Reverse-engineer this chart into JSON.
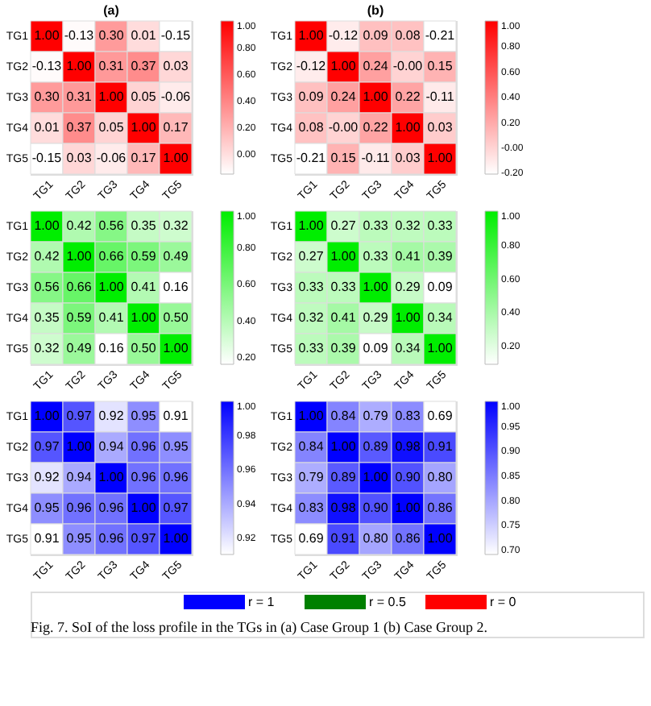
{
  "chart_data": [
    {
      "type": "heatmap",
      "title": "(a)",
      "categories": [
        "TG1",
        "TG2",
        "TG3",
        "TG4",
        "TG5"
      ],
      "y_categories": [
        "TG1",
        "TG2",
        "TG3",
        "TG4",
        "TG5"
      ],
      "cells": [
        [
          1.0,
          -0.13,
          0.3,
          0.01,
          -0.15
        ],
        [
          -0.13,
          1.0,
          0.31,
          0.37,
          0.03
        ],
        [
          0.3,
          0.31,
          1.0,
          0.05,
          -0.06
        ],
        [
          0.01,
          0.37,
          0.05,
          1.0,
          0.17
        ],
        [
          -0.15,
          0.03,
          -0.06,
          0.17,
          1.0
        ]
      ],
      "cell_labels": [
        [
          "1.00",
          "-0.13",
          "0.30",
          "0.01",
          "-0.15"
        ],
        [
          "-0.13",
          "1.00",
          "0.31",
          "0.37",
          "0.03"
        ],
        [
          "0.30",
          "0.31",
          "1.00",
          "0.05",
          "-0.06"
        ],
        [
          "0.01",
          "0.37",
          "0.05",
          "1.00",
          "0.17"
        ],
        [
          "-0.15",
          "0.03",
          "-0.06",
          "0.17",
          "1.00"
        ]
      ],
      "colors": [
        "#ffffff",
        "#ff0000"
      ],
      "clim": [
        -0.15,
        1.0
      ],
      "cticks": [
        {
          "value": 0,
          "label": "0.00"
        },
        {
          "value": 0.2,
          "label": "0.20"
        },
        {
          "value": 0.4,
          "label": "0.40"
        },
        {
          "value": 0.6,
          "label": "0.60"
        },
        {
          "value": 0.8,
          "label": "0.80"
        },
        {
          "value": 1,
          "label": "1.00"
        }
      ]
    },
    {
      "type": "heatmap",
      "title": "(b)",
      "categories": [
        "TG1",
        "TG2",
        "TG3",
        "TG4",
        "TG5"
      ],
      "y_categories": [
        "TG1",
        "TG2",
        "TG3",
        "TG4",
        "TG5"
      ],
      "cells": [
        [
          1.0,
          -0.12,
          0.09,
          0.08,
          -0.21
        ],
        [
          -0.12,
          1.0,
          0.24,
          0.0,
          0.15
        ],
        [
          0.09,
          0.24,
          1.0,
          0.22,
          -0.11
        ],
        [
          0.08,
          0.0,
          0.22,
          1.0,
          0.03
        ],
        [
          -0.21,
          0.15,
          -0.11,
          0.03,
          1.0
        ]
      ],
      "cell_labels": [
        [
          "1.00",
          "-0.12",
          "0.09",
          "0.08",
          "-0.21"
        ],
        [
          "-0.12",
          "1.00",
          "0.24",
          "-0.00",
          "0.15"
        ],
        [
          "0.09",
          "0.24",
          "1.00",
          "0.22",
          "-0.11"
        ],
        [
          "0.08",
          "-0.00",
          "0.22",
          "1.00",
          "0.03"
        ],
        [
          "-0.21",
          "0.15",
          "-0.11",
          "0.03",
          "1.00"
        ]
      ],
      "colors": [
        "#ffffff",
        "#ff0000"
      ],
      "clim": [
        -0.21,
        1.0
      ],
      "cticks": [
        {
          "value": -0.2,
          "label": "-0.20"
        },
        {
          "value": 0,
          "label": "-0.00"
        },
        {
          "value": 0.2,
          "label": "0.20"
        },
        {
          "value": 0.4,
          "label": "0.40"
        },
        {
          "value": 0.6,
          "label": "0.60"
        },
        {
          "value": 0.8,
          "label": "0.80"
        },
        {
          "value": 1,
          "label": "1.00"
        }
      ]
    },
    {
      "type": "heatmap",
      "categories": [
        "TG1",
        "TG2",
        "TG3",
        "TG4",
        "TG5"
      ],
      "y_categories": [
        "TG1",
        "TG2",
        "TG3",
        "TG4",
        "TG5"
      ],
      "cells": [
        [
          1.0,
          0.42,
          0.56,
          0.35,
          0.32
        ],
        [
          0.42,
          1.0,
          0.66,
          0.59,
          0.49
        ],
        [
          0.56,
          0.66,
          1.0,
          0.41,
          0.16
        ],
        [
          0.35,
          0.59,
          0.41,
          1.0,
          0.5
        ],
        [
          0.32,
          0.49,
          0.16,
          0.5,
          1.0
        ]
      ],
      "cell_labels": [
        [
          "1.00",
          "0.42",
          "0.56",
          "0.35",
          "0.32"
        ],
        [
          "0.42",
          "1.00",
          "0.66",
          "0.59",
          "0.49"
        ],
        [
          "0.56",
          "0.66",
          "1.00",
          "0.41",
          "0.16"
        ],
        [
          "0.35",
          "0.59",
          "0.41",
          "1.00",
          "0.50"
        ],
        [
          "0.32",
          "0.49",
          "0.16",
          "0.50",
          "1.00"
        ]
      ],
      "colors": [
        "#ffffff",
        "#00ee00"
      ],
      "clim": [
        0.16,
        1.0
      ],
      "cticks": [
        {
          "value": 0.2,
          "label": "0.20"
        },
        {
          "value": 0.4,
          "label": "0.40"
        },
        {
          "value": 0.6,
          "label": "0.60"
        },
        {
          "value": 0.8,
          "label": "0.80"
        },
        {
          "value": 1,
          "label": "1.00"
        }
      ]
    },
    {
      "type": "heatmap",
      "categories": [
        "TG1",
        "TG2",
        "TG3",
        "TG4",
        "TG5"
      ],
      "y_categories": [
        "TG1",
        "TG2",
        "TG3",
        "TG4",
        "TG5"
      ],
      "cells": [
        [
          1.0,
          0.27,
          0.33,
          0.32,
          0.33
        ],
        [
          0.27,
          1.0,
          0.33,
          0.41,
          0.39
        ],
        [
          0.33,
          0.33,
          1.0,
          0.29,
          0.09
        ],
        [
          0.32,
          0.41,
          0.29,
          1.0,
          0.34
        ],
        [
          0.33,
          0.39,
          0.09,
          0.34,
          1.0
        ]
      ],
      "cell_labels": [
        [
          "1.00",
          "0.27",
          "0.33",
          "0.32",
          "0.33"
        ],
        [
          "0.27",
          "1.00",
          "0.33",
          "0.41",
          "0.39"
        ],
        [
          "0.33",
          "0.33",
          "1.00",
          "0.29",
          "0.09"
        ],
        [
          "0.32",
          "0.41",
          "0.29",
          "1.00",
          "0.34"
        ],
        [
          "0.33",
          "0.39",
          "0.09",
          "0.34",
          "1.00"
        ]
      ],
      "colors": [
        "#ffffff",
        "#00ee00"
      ],
      "clim": [
        0.09,
        1.0
      ],
      "cticks": [
        {
          "value": 0.2,
          "label": "0.20"
        },
        {
          "value": 0.4,
          "label": "0.40"
        },
        {
          "value": 0.6,
          "label": "0.60"
        },
        {
          "value": 0.8,
          "label": "0.80"
        },
        {
          "value": 1,
          "label": "1.00"
        }
      ]
    },
    {
      "type": "heatmap",
      "categories": [
        "TG1",
        "TG2",
        "TG3",
        "TG4",
        "TG5"
      ],
      "y_categories": [
        "TG1",
        "TG2",
        "TG3",
        "TG4",
        "TG5"
      ],
      "cells": [
        [
          1.0,
          0.97,
          0.92,
          0.95,
          0.91
        ],
        [
          0.97,
          1.0,
          0.94,
          0.96,
          0.95
        ],
        [
          0.92,
          0.94,
          1.0,
          0.96,
          0.96
        ],
        [
          0.95,
          0.96,
          0.96,
          1.0,
          0.97
        ],
        [
          0.91,
          0.95,
          0.96,
          0.97,
          1.0
        ]
      ],
      "cell_labels": [
        [
          "1.00",
          "0.97",
          "0.92",
          "0.95",
          "0.91"
        ],
        [
          "0.97",
          "1.00",
          "0.94",
          "0.96",
          "0.95"
        ],
        [
          "0.92",
          "0.94",
          "1.00",
          "0.96",
          "0.96"
        ],
        [
          "0.95",
          "0.96",
          "0.96",
          "1.00",
          "0.97"
        ],
        [
          "0.91",
          "0.95",
          "0.96",
          "0.97",
          "1.00"
        ]
      ],
      "colors": [
        "#ffffff",
        "#0000ff"
      ],
      "clim": [
        0.91,
        1.0
      ],
      "cticks": [
        {
          "value": 0.92,
          "label": "0.92"
        },
        {
          "value": 0.94,
          "label": "0.94"
        },
        {
          "value": 0.96,
          "label": "0.96"
        },
        {
          "value": 0.98,
          "label": "0.98"
        },
        {
          "value": 1,
          "label": "1.00"
        }
      ]
    },
    {
      "type": "heatmap",
      "categories": [
        "TG1",
        "TG2",
        "TG3",
        "TG4",
        "TG5"
      ],
      "y_categories": [
        "TG1",
        "TG2",
        "TG3",
        "TG4",
        "TG5"
      ],
      "cells": [
        [
          1.0,
          0.84,
          0.79,
          0.83,
          0.69
        ],
        [
          0.84,
          1.0,
          0.89,
          0.98,
          0.91
        ],
        [
          0.79,
          0.89,
          1.0,
          0.9,
          0.8
        ],
        [
          0.83,
          0.98,
          0.9,
          1.0,
          0.86
        ],
        [
          0.69,
          0.91,
          0.8,
          0.86,
          1.0
        ]
      ],
      "cell_labels": [
        [
          "1.00",
          "0.84",
          "0.79",
          "0.83",
          "0.69"
        ],
        [
          "0.84",
          "1.00",
          "0.89",
          "0.98",
          "0.91"
        ],
        [
          "0.79",
          "0.89",
          "1.00",
          "0.90",
          "0.80"
        ],
        [
          "0.83",
          "0.98",
          "0.90",
          "1.00",
          "0.86"
        ],
        [
          "0.69",
          "0.91",
          "0.80",
          "0.86",
          "1.00"
        ]
      ],
      "colors": [
        "#ffffff",
        "#0000ff"
      ],
      "clim": [
        0.69,
        1.0
      ],
      "cticks": [
        {
          "value": 0.7,
          "label": "0.70"
        },
        {
          "value": 0.75,
          "label": "0.75"
        },
        {
          "value": 0.8,
          "label": "0.80"
        },
        {
          "value": 0.85,
          "label": "0.85"
        },
        {
          "value": 0.9,
          "label": "0.90"
        },
        {
          "value": 0.95,
          "label": "0.95"
        },
        {
          "value": 1,
          "label": "1.00"
        }
      ]
    },
    {
      "type": "other",
      "categories": [
        "r = 1",
        "r = 0.5",
        "r = 0"
      ],
      "colors": [
        "#0000ff",
        "#008000",
        "#ff0000"
      ],
      "annotations": [
        "Fig. 7. SoI of the loss profile in the TGs in (a) Case Group 1 (b) Case Group 2."
      ]
    }
  ]
}
